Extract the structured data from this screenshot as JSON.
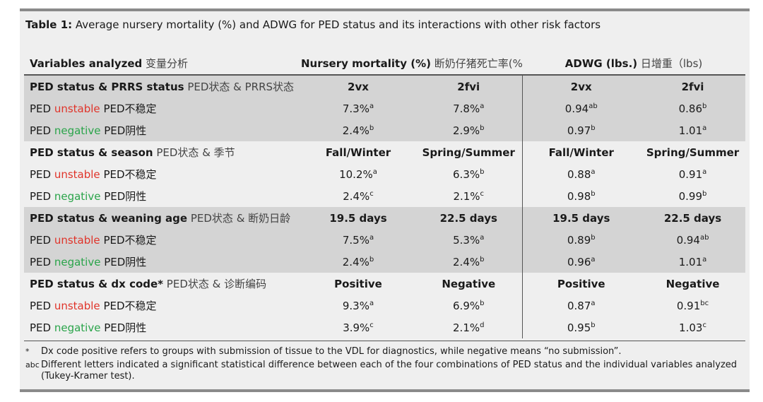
{
  "caption": {
    "label": "Table 1:",
    "text": " Average nursery mortality (%) and ADWG for PED status and its interactions with other risk factors"
  },
  "header": {
    "variables": "Variables analyzed",
    "variables_cn": " 变量分析",
    "mortality": "Nursery mortality (%)",
    "mortality_cn": " 断奶仔猪死亡率(%)",
    "adwg": "ADWG (lbs.)",
    "adwg_cn": " 日增重（lbs)"
  },
  "groups": [
    {
      "title": "PED status & PRRS status",
      "title_cn": " PED状态 & PRRS状态",
      "cols": [
        "2vx",
        "2fvi",
        "2vx",
        "2fvi"
      ],
      "rows": [
        {
          "prefix": "PED ",
          "status": "unstable",
          "cn": " PED不稳定",
          "values": [
            {
              "v": "7.3%",
              "s": "a"
            },
            {
              "v": "7.8%",
              "s": "a"
            },
            {
              "v": "0.94",
              "s": "ab"
            },
            {
              "v": "0.86",
              "s": "b"
            }
          ]
        },
        {
          "prefix": "PED ",
          "status": "negative",
          "cn": " PED阴性",
          "values": [
            {
              "v": "2.4%",
              "s": "b"
            },
            {
              "v": "2.9%",
              "s": "b"
            },
            {
              "v": "0.97",
              "s": "b"
            },
            {
              "v": "1.01",
              "s": "a"
            }
          ]
        }
      ]
    },
    {
      "title": "PED status & season",
      "title_cn": " PED状态 & 季节",
      "cols": [
        "Fall/Winter",
        "Spring/Summer",
        "Fall/Winter",
        "Spring/Summer"
      ],
      "rows": [
        {
          "prefix": "PED ",
          "status": "unstable",
          "cn": "  PED不稳定",
          "values": [
            {
              "v": "10.2%",
              "s": "a"
            },
            {
              "v": "6.3%",
              "s": "b"
            },
            {
              "v": "0.88",
              "s": "a"
            },
            {
              "v": "0.91",
              "s": "a"
            }
          ]
        },
        {
          "prefix": "PED ",
          "status": "negative",
          "cn": "  PED阴性",
          "values": [
            {
              "v": "2.4%",
              "s": "c"
            },
            {
              "v": "2.1%",
              "s": "c"
            },
            {
              "v": "0.98",
              "s": "b"
            },
            {
              "v": "0.99",
              "s": "b"
            }
          ]
        }
      ]
    },
    {
      "title": "PED status & weaning age",
      "title_cn": " PED状态 & 断奶日龄",
      "cols": [
        "19.5 days",
        "22.5 days",
        "19.5 days",
        "22.5 days"
      ],
      "rows": [
        {
          "prefix": "PED ",
          "status": "unstable",
          "cn": "  PED不稳定",
          "values": [
            {
              "v": "7.5%",
              "s": "a"
            },
            {
              "v": "5.3%",
              "s": "a"
            },
            {
              "v": "0.89",
              "s": "b"
            },
            {
              "v": "0.94",
              "s": "ab"
            }
          ]
        },
        {
          "prefix": "PED ",
          "status": "negative",
          "cn": "  PED阴性",
          "values": [
            {
              "v": "2.4%",
              "s": "b"
            },
            {
              "v": "2.4%",
              "s": "b"
            },
            {
              "v": "0.96",
              "s": "a"
            },
            {
              "v": "1.01",
              "s": "a"
            }
          ]
        }
      ]
    },
    {
      "title": "PED status & dx code*",
      "title_cn": " PED状态 & 诊断编码",
      "cols": [
        "Positive",
        "Negative",
        "Positive",
        "Negative"
      ],
      "rows": [
        {
          "prefix": "PED ",
          "status": "unstable",
          "cn": "  PED不稳定",
          "values": [
            {
              "v": "9.3%",
              "s": "a"
            },
            {
              "v": "6.9%",
              "s": "b"
            },
            {
              "v": "0.87",
              "s": "a"
            },
            {
              "v": "0.91",
              "s": "bc"
            }
          ]
        },
        {
          "prefix": "PED ",
          "status": "negative",
          "cn": "  PED阴性",
          "values": [
            {
              "v": "3.9%",
              "s": "c"
            },
            {
              "v": "2.1%",
              "s": "d"
            },
            {
              "v": "0.95",
              "s": "b"
            },
            {
              "v": "1.03",
              "s": "c"
            }
          ]
        }
      ]
    }
  ],
  "notes": [
    {
      "sym": "*",
      "text": "Dx code positive refers to groups with submission of tissue to the VDL for diagnostics, while negative means “no submission”."
    },
    {
      "sym": "abc",
      "text": "Different letters indicated a significant statistical difference between each of the four combinations of PED status and the individual variables analyzed (Tukey-Kramer test)."
    }
  ],
  "colors": {
    "unstable": "#e0342a",
    "negative": "#2aa44a",
    "shade": "#d4d4d4",
    "panel": "#efefef",
    "rule": "#8a8a8a"
  }
}
